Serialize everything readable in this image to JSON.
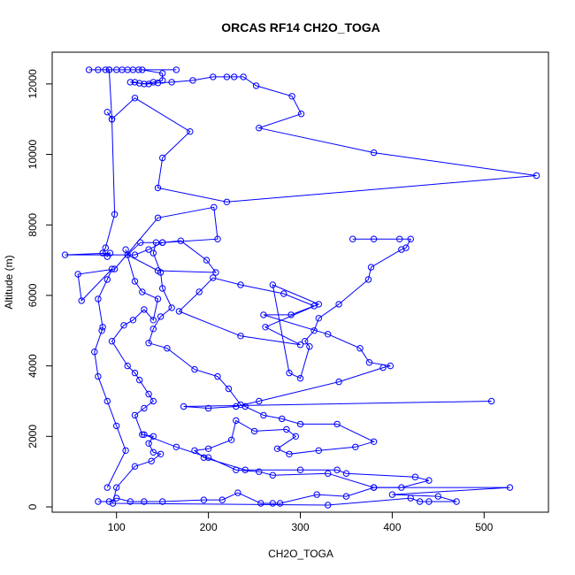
{
  "chart_data": {
    "type": "line",
    "title": "ORCAS RF14 CH2O_TOGA",
    "xlabel": "CH2O_TOGA",
    "ylabel": "Altitude (m)",
    "xlim": [
      30,
      570
    ],
    "ylim": [
      -150,
      12900
    ],
    "xticks": [
      100,
      200,
      300,
      400,
      500
    ],
    "yticks": [
      0,
      2000,
      4000,
      6000,
      8000,
      10000,
      12000
    ],
    "grid": false,
    "legend": "none",
    "marker": "open-circle",
    "series_color": "#0000ff",
    "series": [
      {
        "values": [
          [
            165,
            12400
          ],
          [
            70,
            12400
          ],
          [
            80,
            12400
          ],
          [
            88,
            12400
          ],
          [
            92,
            12400
          ],
          [
            100,
            12400
          ],
          [
            106,
            12400
          ],
          [
            112,
            12400
          ],
          [
            118,
            12400
          ],
          [
            124,
            12400
          ],
          [
            128,
            12400
          ],
          [
            150,
            12300
          ],
          [
            150,
            12100
          ],
          [
            140,
            12050
          ],
          [
            130,
            12000
          ],
          [
            120,
            12050
          ],
          [
            115,
            12050
          ],
          [
            125,
            12020
          ],
          [
            135,
            12000
          ],
          [
            145,
            12030
          ],
          [
            160,
            12050
          ],
          [
            183,
            12100
          ],
          [
            205,
            12200
          ],
          [
            220,
            12200
          ],
          [
            228,
            12200
          ],
          [
            238,
            12200
          ],
          [
            252,
            11950
          ],
          [
            291,
            11650
          ],
          [
            301,
            11150
          ],
          [
            255,
            10750
          ],
          [
            380,
            10050
          ],
          [
            557,
            9400
          ],
          [
            220,
            8650
          ],
          [
            145,
            9050
          ],
          [
            150,
            9900
          ],
          [
            180,
            10650
          ],
          [
            120,
            11600
          ],
          [
            95,
            11000
          ],
          [
            90,
            11200
          ]
        ]
      },
      {
        "values": [
          [
            92,
            12400
          ],
          [
            95,
            11000
          ],
          [
            98,
            8300
          ],
          [
            88,
            7350
          ],
          [
            85,
            7200
          ],
          [
            90,
            7100
          ],
          [
            93,
            7200
          ],
          [
            44,
            7150
          ],
          [
            120,
            7150
          ],
          [
            135,
            7300
          ],
          [
            150,
            7500
          ],
          [
            170,
            7550
          ],
          [
            198,
            7000
          ],
          [
            208,
            6650
          ],
          [
            145,
            6700
          ],
          [
            112,
            7150
          ],
          [
            126,
            7500
          ],
          [
            150,
            7500
          ],
          [
            210,
            7600
          ],
          [
            206,
            8500
          ],
          [
            145,
            8200
          ],
          [
            98,
            6750
          ],
          [
            58,
            6600
          ],
          [
            62,
            5850
          ],
          [
            95,
            6750
          ],
          [
            90,
            6450
          ],
          [
            80,
            5900
          ],
          [
            85,
            5100
          ],
          [
            84,
            5000
          ],
          [
            76,
            4400
          ],
          [
            80,
            3700
          ],
          [
            90,
            3000
          ],
          [
            100,
            2300
          ],
          [
            110,
            1600
          ],
          [
            90,
            550
          ]
        ]
      },
      {
        "values": [
          [
            357,
            7600
          ],
          [
            380,
            7600
          ],
          [
            408,
            7600
          ],
          [
            420,
            7600
          ],
          [
            415,
            7350
          ],
          [
            410,
            7300
          ],
          [
            377,
            6800
          ],
          [
            374,
            6450
          ],
          [
            342,
            5750
          ],
          [
            320,
            5350
          ],
          [
            315,
            5000
          ],
          [
            305,
            4700
          ],
          [
            310,
            4550
          ],
          [
            300,
            3650
          ],
          [
            288,
            3800
          ],
          [
            270,
            6300
          ],
          [
            320,
            5750
          ],
          [
            262,
            5100
          ],
          [
            300,
            4600
          ],
          [
            235,
            4850
          ],
          [
            168,
            5550
          ],
          [
            190,
            6100
          ],
          [
            205,
            6500
          ],
          [
            235,
            6300
          ],
          [
            282,
            6050
          ],
          [
            315,
            5700
          ],
          [
            290,
            5450
          ],
          [
            260,
            5450
          ],
          [
            330,
            4900
          ],
          [
            365,
            4500
          ],
          [
            375,
            4100
          ],
          [
            398,
            4000
          ],
          [
            390,
            3950
          ],
          [
            342,
            3550
          ],
          [
            255,
            3000
          ],
          [
            230,
            2850
          ],
          [
            200,
            2800
          ],
          [
            173,
            2850
          ],
          [
            508,
            3000
          ]
        ]
      },
      {
        "values": [
          [
            143,
            7500
          ],
          [
            140,
            7200
          ],
          [
            148,
            6650
          ],
          [
            150,
            6200
          ],
          [
            160,
            5650
          ],
          [
            148,
            5400
          ],
          [
            140,
            5050
          ],
          [
            135,
            4650
          ],
          [
            155,
            4500
          ],
          [
            185,
            3900
          ],
          [
            210,
            3700
          ],
          [
            222,
            3350
          ],
          [
            235,
            2900
          ],
          [
            240,
            2850
          ],
          [
            260,
            2600
          ],
          [
            280,
            2500
          ],
          [
            300,
            2350
          ],
          [
            340,
            2350
          ],
          [
            380,
            1850
          ],
          [
            360,
            1700
          ],
          [
            320,
            1600
          ],
          [
            288,
            1500
          ],
          [
            275,
            1650
          ],
          [
            295,
            2000
          ],
          [
            285,
            2200
          ],
          [
            250,
            2150
          ],
          [
            230,
            2450
          ],
          [
            225,
            1900
          ],
          [
            200,
            1650
          ],
          [
            185,
            1600
          ],
          [
            195,
            1400
          ],
          [
            240,
            1050
          ],
          [
            300,
            1050
          ],
          [
            340,
            1050
          ],
          [
            350,
            950
          ],
          [
            425,
            850
          ],
          [
            440,
            750
          ],
          [
            410,
            550
          ],
          [
            380,
            550
          ],
          [
            350,
            300
          ],
          [
            318,
            350
          ],
          [
            278,
            100
          ],
          [
            270,
            100
          ],
          [
            257,
            100
          ],
          [
            232,
            400
          ],
          [
            215,
            200
          ],
          [
            195,
            200
          ],
          [
            150,
            150
          ],
          [
            130,
            150
          ],
          [
            115,
            150
          ],
          [
            100,
            250
          ],
          [
            92,
            150
          ],
          [
            80,
            150
          ]
        ]
      },
      {
        "values": [
          [
            110,
            7300
          ],
          [
            120,
            6400
          ],
          [
            128,
            6100
          ],
          [
            145,
            5900
          ],
          [
            140,
            5300
          ],
          [
            130,
            5600
          ],
          [
            118,
            5300
          ],
          [
            108,
            5150
          ],
          [
            95,
            4700
          ],
          [
            112,
            4000
          ],
          [
            120,
            3800
          ],
          [
            125,
            3600
          ],
          [
            135,
            3200
          ],
          [
            140,
            3000
          ],
          [
            130,
            2800
          ],
          [
            120,
            2600
          ],
          [
            128,
            2050
          ],
          [
            140,
            2000
          ],
          [
            135,
            1800
          ],
          [
            140,
            1550
          ],
          [
            148,
            1500
          ],
          [
            138,
            1300
          ],
          [
            120,
            1150
          ],
          [
            100,
            550
          ],
          [
            96,
            100
          ],
          [
            330,
            50
          ],
          [
            420,
            250
          ],
          [
            430,
            150
          ],
          [
            440,
            150
          ],
          [
            470,
            150
          ],
          [
            450,
            300
          ],
          [
            400,
            350
          ],
          [
            528,
            550
          ],
          [
            380,
            550
          ],
          [
            330,
            950
          ],
          [
            270,
            900
          ],
          [
            255,
            1000
          ],
          [
            230,
            1050
          ],
          [
            200,
            1400
          ],
          [
            165,
            1700
          ],
          [
            130,
            2050
          ]
        ]
      }
    ]
  }
}
